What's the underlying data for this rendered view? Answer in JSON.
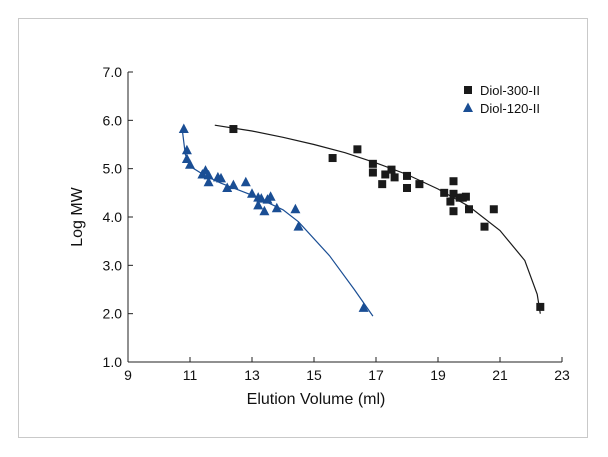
{
  "chart_data": {
    "type": "scatter",
    "title": "",
    "xlabel": "Elution Volume (ml)",
    "ylabel": "Log MW",
    "xlim": [
      9,
      23
    ],
    "ylim": [
      1.0,
      7.0
    ],
    "x_ticks": [
      "9",
      "11",
      "13",
      "15",
      "17",
      "19",
      "21",
      "23"
    ],
    "y_ticks": [
      "1.0",
      "2.0",
      "3.0",
      "4.0",
      "5.0",
      "6.0",
      "7.0"
    ],
    "grid": false,
    "legend_position": "top-right",
    "series": [
      {
        "name": "Diol-300-II",
        "marker": "square",
        "color": "#1a1a1a",
        "points": [
          [
            12.4,
            5.82
          ],
          [
            15.6,
            5.22
          ],
          [
            16.4,
            5.4
          ],
          [
            16.9,
            5.1
          ],
          [
            16.9,
            4.92
          ],
          [
            17.2,
            4.68
          ],
          [
            17.3,
            4.88
          ],
          [
            17.5,
            4.98
          ],
          [
            17.6,
            4.82
          ],
          [
            18.0,
            4.6
          ],
          [
            18.0,
            4.85
          ],
          [
            18.4,
            4.68
          ],
          [
            19.2,
            4.5
          ],
          [
            19.4,
            4.32
          ],
          [
            19.5,
            4.74
          ],
          [
            19.5,
            4.48
          ],
          [
            19.5,
            4.12
          ],
          [
            19.7,
            4.4
          ],
          [
            19.8,
            4.4
          ],
          [
            19.9,
            4.42
          ],
          [
            20.0,
            4.16
          ],
          [
            20.5,
            3.8
          ],
          [
            20.8,
            4.16
          ],
          [
            22.3,
            2.14
          ]
        ],
        "fit": [
          [
            11.8,
            5.9
          ],
          [
            13,
            5.78
          ],
          [
            14,
            5.65
          ],
          [
            15,
            5.5
          ],
          [
            16,
            5.33
          ],
          [
            17,
            5.12
          ],
          [
            18,
            4.88
          ],
          [
            19,
            4.58
          ],
          [
            20,
            4.22
          ],
          [
            21,
            3.72
          ],
          [
            21.8,
            3.1
          ],
          [
            22.2,
            2.4
          ],
          [
            22.3,
            2.0
          ]
        ]
      },
      {
        "name": "Diol-120-II",
        "marker": "triangle",
        "color": "#1a4e94",
        "points": [
          [
            10.8,
            5.82
          ],
          [
            10.9,
            5.38
          ],
          [
            10.9,
            5.2
          ],
          [
            11.0,
            5.08
          ],
          [
            11.4,
            4.88
          ],
          [
            11.5,
            4.96
          ],
          [
            11.6,
            4.72
          ],
          [
            11.6,
            4.86
          ],
          [
            11.9,
            4.82
          ],
          [
            12.0,
            4.8
          ],
          [
            12.2,
            4.6
          ],
          [
            12.4,
            4.66
          ],
          [
            12.8,
            4.72
          ],
          [
            13.0,
            4.48
          ],
          [
            13.2,
            4.4
          ],
          [
            13.2,
            4.24
          ],
          [
            13.3,
            4.38
          ],
          [
            13.4,
            4.12
          ],
          [
            13.5,
            4.36
          ],
          [
            13.6,
            4.42
          ],
          [
            13.8,
            4.18
          ],
          [
            14.4,
            4.16
          ],
          [
            14.5,
            3.8
          ],
          [
            16.6,
            2.12
          ]
        ],
        "fit": [
          [
            10.75,
            5.8
          ],
          [
            10.85,
            5.3
          ],
          [
            11.0,
            5.05
          ],
          [
            11.5,
            4.85
          ],
          [
            12.0,
            4.7
          ],
          [
            13.0,
            4.45
          ],
          [
            14.0,
            4.15
          ],
          [
            14.5,
            3.9
          ],
          [
            15.5,
            3.2
          ],
          [
            16.3,
            2.5
          ],
          [
            16.9,
            1.95
          ]
        ]
      }
    ]
  }
}
